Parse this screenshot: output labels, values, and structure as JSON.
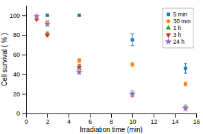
{
  "chart_data": {
    "type": "scatter",
    "xlabel": "Irradiation time (min)",
    "ylabel": "Cell survival ( % )",
    "xlim": [
      0,
      16
    ],
    "ylim": [
      0,
      110
    ],
    "xticks": [
      0,
      2,
      4,
      6,
      8,
      10,
      12,
      14,
      16
    ],
    "yticks": [
      0,
      20,
      40,
      60,
      80,
      100
    ],
    "x": [
      1,
      2,
      5,
      10,
      15
    ],
    "series": [
      {
        "name": "5 min",
        "marker": "square",
        "values": [
          99,
          100,
          100,
          75,
          46
        ],
        "errors": [
          1,
          1,
          1,
          6,
          5
        ]
      },
      {
        "name": "30 min",
        "marker": "circle",
        "values": [
          97,
          93,
          54,
          50,
          30
        ],
        "errors": [
          1,
          2,
          2,
          2,
          2
        ]
      },
      {
        "name": "1 h",
        "marker": "triangle-up",
        "values": [
          97,
          81,
          46,
          21,
          7
        ],
        "errors": [
          1,
          2,
          3,
          2,
          1
        ]
      },
      {
        "name": "3 h",
        "marker": "triangle-down",
        "values": [
          96,
          80,
          47,
          19,
          6
        ],
        "errors": [
          1,
          2,
          3,
          2,
          1
        ]
      },
      {
        "name": "24 h",
        "marker": "star",
        "values": [
          99,
          91,
          42,
          20,
          5
        ],
        "errors": [
          1,
          2,
          2,
          1,
          2
        ]
      }
    ],
    "legend": "upper right"
  }
}
